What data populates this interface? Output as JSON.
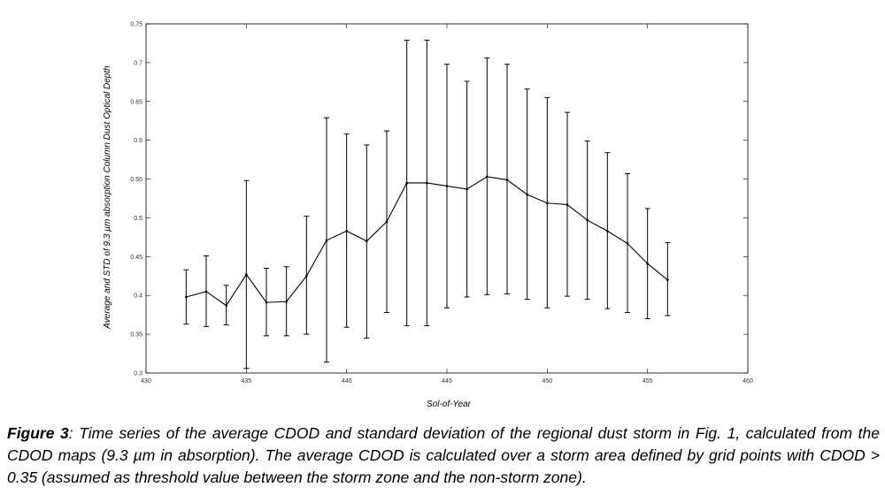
{
  "caption": {
    "label": "Figure 3",
    "text": ": Time series of the average CDOD and standard deviation of the regional dust storm in Fig. 1, calculated from the CDOD maps (9.3 µm in absorption). The average CDOD is calculated over a storm area defined by grid points with CDOD > 0.35 (assumed as threshold value between the storm zone and the non-storm zone)."
  },
  "chart_data": {
    "type": "line",
    "title": "",
    "xlabel": "Sol-of-Year",
    "ylabel": "Average and STD of 9.3 µm absorption Column Dust Optical Depth",
    "xlim": [
      430,
      460
    ],
    "ylim": [
      0.3,
      0.75
    ],
    "xticks": [
      "430",
      "435",
      "440",
      "445",
      "450",
      "455",
      "460"
    ],
    "yticks": [
      "0.3",
      "0.35",
      "0.4",
      "0.45",
      "0.5",
      "0.55",
      "0.6",
      "0.65",
      "0.7",
      "0.75"
    ],
    "grid": false,
    "series": [
      {
        "x": [
          432,
          433,
          434,
          435,
          436,
          437,
          438,
          439,
          440,
          441,
          442,
          443,
          444,
          445,
          446,
          447,
          448,
          449,
          450,
          451,
          452,
          453,
          454,
          455,
          456
        ],
        "y": [
          0.398,
          0.405,
          0.387,
          0.427,
          0.391,
          0.392,
          0.425,
          0.471,
          0.483,
          0.47,
          0.495,
          0.545,
          0.545,
          0.541,
          0.537,
          0.553,
          0.549,
          0.53,
          0.519,
          0.517,
          0.497,
          0.483,
          0.467,
          0.441,
          0.42
        ],
        "err_low": [
          0.363,
          0.36,
          0.362,
          0.306,
          0.348,
          0.348,
          0.35,
          0.314,
          0.359,
          0.345,
          0.378,
          0.361,
          0.361,
          0.384,
          0.398,
          0.401,
          0.402,
          0.395,
          0.384,
          0.399,
          0.395,
          0.383,
          0.378,
          0.37,
          0.374
        ],
        "err_high": [
          0.433,
          0.451,
          0.413,
          0.548,
          0.435,
          0.437,
          0.502,
          0.629,
          0.608,
          0.594,
          0.612,
          0.729,
          0.729,
          0.698,
          0.676,
          0.706,
          0.698,
          0.666,
          0.655,
          0.636,
          0.599,
          0.584,
          0.557,
          0.512,
          0.468
        ]
      }
    ],
    "colors": {
      "line": "#000000",
      "axis": "#000000",
      "text": "#333333"
    }
  }
}
